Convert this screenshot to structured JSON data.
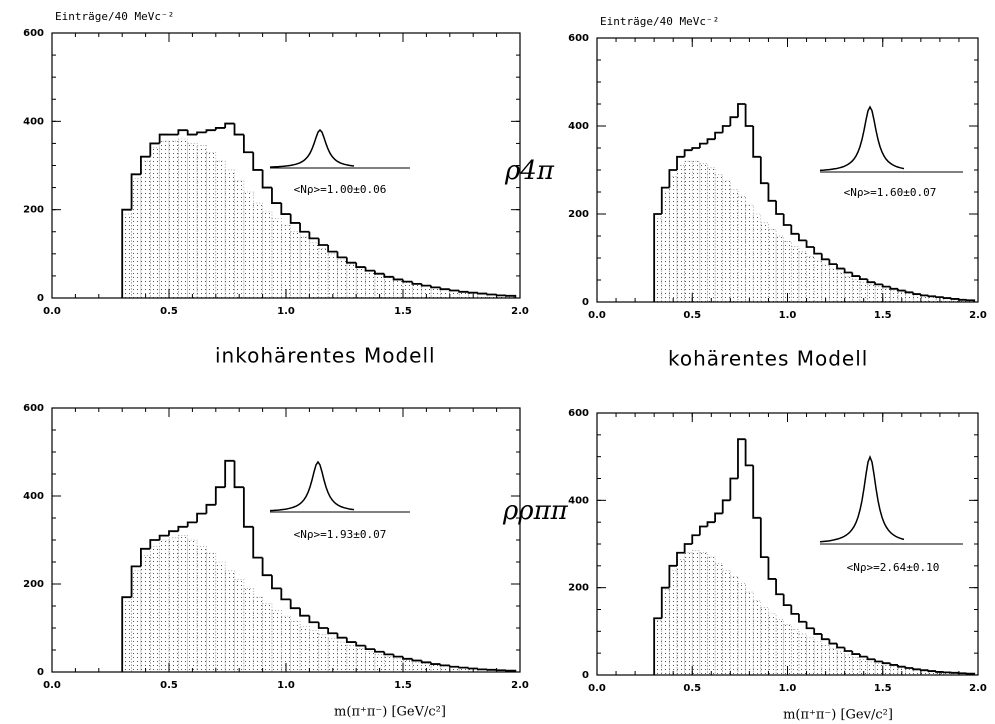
{
  "chart_data": [
    {
      "type": "histogram",
      "y_label": "Einträge/40 MeVc⁻²",
      "annotation": "<Nρ>=1.00±0.06",
      "xlim": [
        0,
        2
      ],
      "ylim": [
        0,
        600
      ],
      "xticks": [
        {
          "value": 0,
          "label": "0.0"
        },
        {
          "value": 0.5,
          "label": "0.5"
        },
        {
          "value": 1,
          "label": "1.0"
        },
        {
          "value": 1.5,
          "label": "1.5"
        },
        {
          "value": 2,
          "label": "2.0"
        }
      ],
      "yticks": [
        0,
        200,
        400,
        600
      ],
      "bins": [
        0.3,
        0.34,
        0.38,
        0.42,
        0.46,
        0.5,
        0.54,
        0.58,
        0.62,
        0.66,
        0.7,
        0.74,
        0.78,
        0.82,
        0.86,
        0.9,
        0.94,
        0.98,
        1.02,
        1.06,
        1.1,
        1.14,
        1.18,
        1.22,
        1.26,
        1.3,
        1.34,
        1.38,
        1.42,
        1.46,
        1.5,
        1.54,
        1.58,
        1.62,
        1.66,
        1.7,
        1.74,
        1.78,
        1.82,
        1.86,
        1.9,
        1.94,
        1.98
      ],
      "series": [
        {
          "color": "#000000",
          "values": [
            200,
            280,
            320,
            350,
            370,
            370,
            380,
            370,
            375,
            380,
            385,
            395,
            370,
            330,
            290,
            250,
            215,
            190,
            170,
            150,
            135,
            120,
            105,
            92,
            80,
            70,
            62,
            55,
            48,
            42,
            37,
            32,
            28,
            24,
            20,
            17,
            14,
            12,
            10,
            8,
            6,
            5
          ]
        },
        {
          "color": "#808080",
          "values": [
            190,
            270,
            310,
            340,
            355,
            355,
            360,
            350,
            345,
            330,
            310,
            290,
            265,
            240,
            215,
            195,
            180,
            165,
            150,
            138,
            125,
            112,
            100,
            88,
            77,
            68,
            60,
            53,
            46,
            40,
            35,
            31,
            27,
            23,
            19,
            16,
            13,
            11,
            9,
            7,
            5,
            4
          ]
        }
      ]
    },
    {
      "type": "histogram",
      "y_label": "Einträge/40 MeVc⁻²",
      "annotation": "<Nρ>=1.60±0.07",
      "xlim": [
        0,
        2
      ],
      "ylim": [
        0,
        600
      ],
      "xticks": [
        {
          "value": 0,
          "label": "0.0"
        },
        {
          "value": 0.5,
          "label": "0.5"
        },
        {
          "value": 1,
          "label": "1.0"
        },
        {
          "value": 1.5,
          "label": "1.5"
        },
        {
          "value": 2,
          "label": "2.0"
        }
      ],
      "yticks": [
        0,
        200,
        400,
        600
      ],
      "bins": [
        0.3,
        0.34,
        0.38,
        0.42,
        0.46,
        0.5,
        0.54,
        0.58,
        0.62,
        0.66,
        0.7,
        0.74,
        0.78,
        0.82,
        0.86,
        0.9,
        0.94,
        0.98,
        1.02,
        1.06,
        1.1,
        1.14,
        1.18,
        1.22,
        1.26,
        1.3,
        1.34,
        1.38,
        1.42,
        1.46,
        1.5,
        1.54,
        1.58,
        1.62,
        1.66,
        1.7,
        1.74,
        1.78,
        1.82,
        1.86,
        1.9,
        1.94,
        1.98
      ],
      "series": [
        {
          "color": "#000000",
          "values": [
            200,
            260,
            300,
            330,
            345,
            350,
            360,
            370,
            385,
            400,
            420,
            450,
            400,
            330,
            270,
            230,
            200,
            175,
            155,
            140,
            125,
            110,
            97,
            86,
            76,
            67,
            59,
            52,
            45,
            40,
            35,
            30,
            26,
            22,
            18,
            15,
            13,
            11,
            9,
            7,
            5,
            4
          ]
        },
        {
          "color": "#808080",
          "values": [
            190,
            250,
            285,
            310,
            320,
            320,
            315,
            305,
            290,
            275,
            255,
            240,
            220,
            200,
            180,
            165,
            150,
            138,
            126,
            114,
            103,
            93,
            84,
            75,
            66,
            58,
            51,
            45,
            40,
            35,
            30,
            26,
            22,
            19,
            16,
            13,
            11,
            9,
            7,
            5,
            4,
            3
          ]
        }
      ]
    },
    {
      "type": "histogram",
      "x_label": "m(π⁺π⁻) [GeV/c²]",
      "annotation": "<Nρ>=1.93±0.07",
      "xlim": [
        0,
        2
      ],
      "ylim": [
        0,
        600
      ],
      "xticks": [
        {
          "value": 0,
          "label": "0.0"
        },
        {
          "value": 0.5,
          "label": "0.5"
        },
        {
          "value": 1,
          "label": "1.0"
        },
        {
          "value": 1.5,
          "label": "1.5"
        },
        {
          "value": 2,
          "label": "2.0"
        }
      ],
      "yticks": [
        0,
        200,
        400,
        600
      ],
      "bins": [
        0.3,
        0.34,
        0.38,
        0.42,
        0.46,
        0.5,
        0.54,
        0.58,
        0.62,
        0.66,
        0.7,
        0.74,
        0.78,
        0.82,
        0.86,
        0.9,
        0.94,
        0.98,
        1.02,
        1.06,
        1.1,
        1.14,
        1.18,
        1.22,
        1.26,
        1.3,
        1.34,
        1.38,
        1.42,
        1.46,
        1.5,
        1.54,
        1.58,
        1.62,
        1.66,
        1.7,
        1.74,
        1.78,
        1.82,
        1.86,
        1.9,
        1.94,
        1.98
      ],
      "series": [
        {
          "color": "#000000",
          "values": [
            170,
            240,
            280,
            300,
            310,
            320,
            330,
            340,
            360,
            380,
            420,
            480,
            420,
            330,
            260,
            220,
            190,
            165,
            145,
            128,
            113,
            100,
            88,
            78,
            68,
            60,
            52,
            46,
            40,
            35,
            30,
            26,
            22,
            18,
            15,
            12,
            10,
            8,
            6,
            5,
            4,
            3
          ]
        },
        {
          "color": "#808080",
          "values": [
            160,
            230,
            265,
            285,
            300,
            305,
            310,
            300,
            285,
            270,
            250,
            230,
            210,
            190,
            170,
            155,
            140,
            127,
            115,
            104,
            94,
            85,
            76,
            68,
            60,
            53,
            46,
            40,
            35,
            30,
            26,
            22,
            19,
            16,
            13,
            11,
            9,
            7,
            5,
            4,
            3,
            2
          ]
        }
      ]
    },
    {
      "type": "histogram",
      "x_label": "m(π⁺π⁻) [Gev/c²]",
      "annotation": "<Nρ>=2.64±0.10",
      "xlim": [
        0,
        2
      ],
      "ylim": [
        0,
        600
      ],
      "xticks": [
        {
          "value": 0,
          "label": "0.0"
        },
        {
          "value": 0.5,
          "label": "0.5"
        },
        {
          "value": 1,
          "label": "1.0"
        },
        {
          "value": 1.5,
          "label": "1.5"
        },
        {
          "value": 2,
          "label": "2.0"
        }
      ],
      "yticks": [
        0,
        200,
        400,
        600
      ],
      "bins": [
        0.3,
        0.34,
        0.38,
        0.42,
        0.46,
        0.5,
        0.54,
        0.58,
        0.62,
        0.66,
        0.7,
        0.74,
        0.78,
        0.82,
        0.86,
        0.9,
        0.94,
        0.98,
        1.02,
        1.06,
        1.1,
        1.14,
        1.18,
        1.22,
        1.26,
        1.3,
        1.34,
        1.38,
        1.42,
        1.46,
        1.5,
        1.54,
        1.58,
        1.62,
        1.66,
        1.7,
        1.74,
        1.78,
        1.82,
        1.86,
        1.9,
        1.94,
        1.98
      ],
      "series": [
        {
          "color": "#000000",
          "values": [
            130,
            200,
            250,
            280,
            300,
            320,
            340,
            350,
            370,
            400,
            450,
            540,
            480,
            360,
            270,
            220,
            185,
            160,
            140,
            122,
            107,
            94,
            82,
            72,
            63,
            55,
            48,
            42,
            36,
            31,
            27,
            23,
            19,
            16,
            13,
            11,
            9,
            7,
            6,
            5,
            4,
            3
          ]
        },
        {
          "color": "#808080",
          "values": [
            125,
            195,
            240,
            265,
            280,
            285,
            280,
            270,
            255,
            240,
            225,
            210,
            190,
            170,
            155,
            140,
            127,
            115,
            104,
            94,
            85,
            76,
            68,
            60,
            53,
            46,
            40,
            35,
            30,
            26,
            22,
            19,
            16,
            13,
            11,
            9,
            7,
            6,
            5,
            4,
            3,
            2
          ]
        }
      ]
    }
  ],
  "row_labels": [
    "ρ4π",
    "ρρππ"
  ],
  "column_labels": [
    "inkohärentes Modell",
    "kohärentes Modell"
  ]
}
